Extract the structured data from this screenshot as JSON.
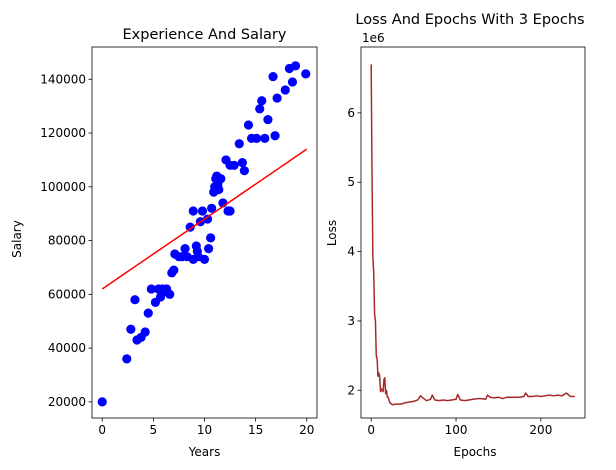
{
  "chart_data": [
    {
      "type": "scatter",
      "title": "Experience And Salary",
      "xlabel": "Years",
      "ylabel": "Salary",
      "xlim": [
        -1,
        21
      ],
      "ylim": [
        14000,
        152000
      ],
      "xticks": [
        0,
        5,
        10,
        15,
        20
      ],
      "yticks": [
        20000,
        40000,
        60000,
        80000,
        100000,
        120000,
        140000
      ],
      "xtick_labels": [
        "0",
        "5",
        "10",
        "15",
        "20"
      ],
      "ytick_labels": [
        "20000",
        "40000",
        "60000",
        "80000",
        "100000",
        "120000",
        "140000"
      ],
      "grid": false,
      "colors": {
        "points": "#0000ff",
        "fit_line": "#ff0000"
      },
      "series": [
        {
          "kind": "points",
          "x": [
            0,
            2.4,
            2.8,
            3.2,
            3.4,
            3.8,
            4.2,
            4.5,
            4.8,
            5.2,
            5.5,
            5.7,
            5.9,
            6.1,
            6.3,
            6.6,
            6.8,
            7.0,
            7.1,
            7.5,
            7.8,
            8.1,
            8.3,
            8.6,
            8.9,
            8.9,
            9.2,
            9.3,
            9.4,
            9.6,
            9.8,
            10.0,
            10.3,
            10.4,
            10.6,
            10.7,
            10.9,
            11.0,
            11.1,
            11.2,
            11.3,
            11.4,
            11.6,
            11.8,
            12.1,
            12.3,
            12.5,
            12.5,
            12.9,
            13.4,
            13.7,
            13.9,
            14.3,
            14.6,
            15.1,
            15.4,
            15.6,
            15.9,
            16.2,
            16.7,
            16.9,
            17.1,
            17.9,
            18.3,
            18.6,
            18.9,
            19.9
          ],
          "y": [
            20000,
            36000,
            47000,
            58000,
            43000,
            44000,
            46000,
            53000,
            62000,
            57000,
            62000,
            59000,
            62000,
            61000,
            62000,
            60000,
            68000,
            69000,
            75000,
            74000,
            74000,
            77000,
            74000,
            85000,
            73000,
            91000,
            78000,
            76000,
            74000,
            87000,
            91000,
            73000,
            88000,
            77000,
            81000,
            92000,
            98000,
            100000,
            103000,
            104000,
            101000,
            99000,
            103000,
            94000,
            110000,
            91000,
            108000,
            91000,
            108000,
            116000,
            109000,
            106000,
            123000,
            118000,
            118000,
            129000,
            132000,
            118000,
            125000,
            141000,
            119000,
            133000,
            136000,
            144000,
            139000,
            145000,
            142000
          ]
        },
        {
          "kind": "line",
          "x": [
            0,
            20
          ],
          "y": [
            62000,
            114000
          ]
        }
      ]
    },
    {
      "type": "line",
      "title": "Loss And Epochs With 3 Epochs",
      "xlabel": "Epochs",
      "ylabel": "Loss",
      "offset_label": "1e6",
      "xlim": [
        -12,
        252
      ],
      "ylim": [
        1.6,
        6.95
      ],
      "xticks": [
        0,
        100,
        200
      ],
      "yticks": [
        2,
        3,
        4,
        5,
        6
      ],
      "xtick_labels": [
        "0",
        "100",
        "200"
      ],
      "ytick_labels": [
        "2",
        "3",
        "4",
        "5",
        "6"
      ],
      "grid": false,
      "colors": {
        "line": "#a52a2a"
      },
      "series": [
        {
          "x": [
            0,
            1,
            2,
            3,
            4,
            5,
            6,
            7,
            8,
            9,
            10,
            11,
            12,
            13,
            14,
            15,
            16,
            17,
            18,
            19,
            20,
            22,
            24,
            26,
            28,
            30,
            35,
            40,
            45,
            50,
            55,
            58,
            62,
            65,
            70,
            72,
            75,
            80,
            85,
            90,
            95,
            100,
            102,
            105,
            110,
            115,
            120,
            125,
            130,
            135,
            137,
            140,
            145,
            150,
            155,
            160,
            165,
            170,
            175,
            180,
            182,
            185,
            190,
            195,
            200,
            205,
            210,
            215,
            220,
            225,
            230,
            235,
            240
          ],
          "y": [
            6.7,
            5.1,
            3.9,
            3.7,
            3.1,
            3.0,
            2.5,
            2.45,
            2.2,
            2.25,
            2.2,
            1.98,
            2.02,
            2.0,
            1.98,
            2.15,
            2.18,
            1.95,
            2.0,
            1.9,
            1.9,
            1.82,
            1.8,
            1.79,
            1.8,
            1.8,
            1.8,
            1.82,
            1.83,
            1.84,
            1.86,
            1.92,
            1.88,
            1.85,
            1.87,
            1.93,
            1.86,
            1.85,
            1.86,
            1.85,
            1.86,
            1.87,
            1.94,
            1.86,
            1.85,
            1.86,
            1.87,
            1.88,
            1.88,
            1.87,
            1.93,
            1.9,
            1.89,
            1.9,
            1.88,
            1.9,
            1.9,
            1.9,
            1.9,
            1.91,
            1.96,
            1.91,
            1.91,
            1.92,
            1.91,
            1.92,
            1.93,
            1.92,
            1.93,
            1.92,
            1.96,
            1.91,
            1.91
          ]
        }
      ]
    }
  ]
}
